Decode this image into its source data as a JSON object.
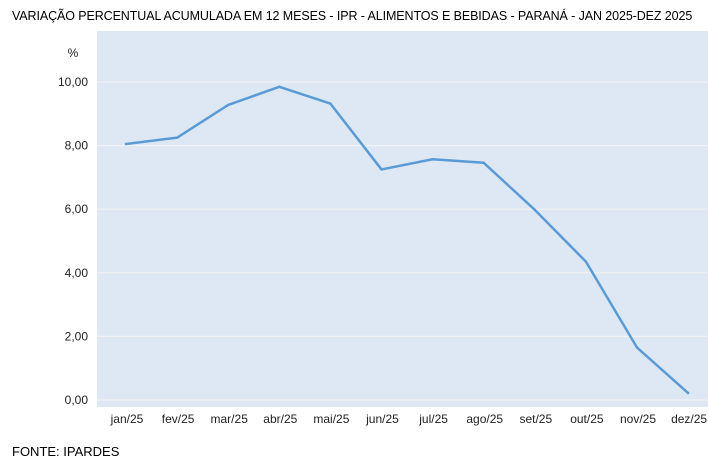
{
  "chart_data": {
    "type": "line",
    "title": "VARIAÇÃO PERCENTUAL ACUMULADA EM 12 MESES - IPR - ALIMENTOS E BEBIDAS - PARANÁ - JAN 2025-DEZ 2025",
    "ylabel": "%",
    "xlabel": "",
    "categories": [
      "jan/25",
      "fev/25",
      "mar/25",
      "abr/25",
      "mai/25",
      "jun/25",
      "jul/25",
      "ago/25",
      "set/25",
      "out/25",
      "nov/25",
      "dez/25"
    ],
    "series": [
      {
        "values": [
          8.05,
          8.25,
          9.28,
          9.85,
          9.32,
          7.25,
          7.57,
          7.46,
          5.98,
          4.35,
          1.65,
          0.22
        ]
      }
    ],
    "ylim": [
      0,
      10
    ],
    "yticks": [
      "0,00",
      "2,00",
      "4,00",
      "6,00",
      "8,00",
      "10,00"
    ],
    "grid": true,
    "colors": {
      "line": "#5B9BD5",
      "plot_background": "#DDE8F4",
      "grid": "#F2F2F2"
    }
  },
  "source": "FONTE: IPARDES"
}
